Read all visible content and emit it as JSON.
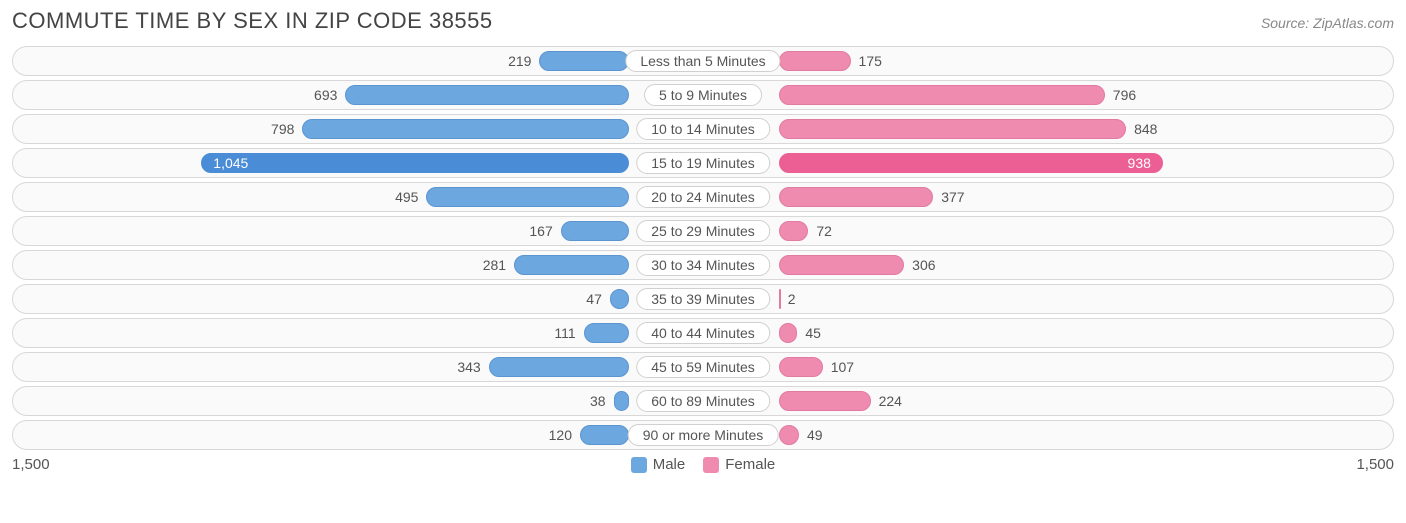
{
  "title": "COMMUTE TIME BY SEX IN ZIP CODE 38555",
  "source": "Source: ZipAtlas.com",
  "axis_max": 1500,
  "axis_label_left": "1,500",
  "axis_label_right": "1,500",
  "colors": {
    "male": "#6ca7e0",
    "male_border": "#5b95d0",
    "female": "#f08bb0",
    "female_border": "#e27aa2",
    "highlight_male": "#4a8cd6",
    "highlight_female": "#ec5f94",
    "row_bg": "#fafafa",
    "row_border": "#d8d8d8",
    "text": "#555555",
    "text_inside": "#ffffff"
  },
  "legend": [
    {
      "label": "Male",
      "color": "#6ca7e0"
    },
    {
      "label": "Female",
      "color": "#f08bb0"
    }
  ],
  "highlight_index": 3,
  "rows": [
    {
      "category": "Less than 5 Minutes",
      "male": 219,
      "male_label": "219",
      "female": 175,
      "female_label": "175"
    },
    {
      "category": "5 to 9 Minutes",
      "male": 693,
      "male_label": "693",
      "female": 796,
      "female_label": "796"
    },
    {
      "category": "10 to 14 Minutes",
      "male": 798,
      "male_label": "798",
      "female": 848,
      "female_label": "848"
    },
    {
      "category": "15 to 19 Minutes",
      "male": 1045,
      "male_label": "1,045",
      "female": 938,
      "female_label": "938"
    },
    {
      "category": "20 to 24 Minutes",
      "male": 495,
      "male_label": "495",
      "female": 377,
      "female_label": "377"
    },
    {
      "category": "25 to 29 Minutes",
      "male": 167,
      "male_label": "167",
      "female": 72,
      "female_label": "72"
    },
    {
      "category": "30 to 34 Minutes",
      "male": 281,
      "male_label": "281",
      "female": 306,
      "female_label": "306"
    },
    {
      "category": "35 to 39 Minutes",
      "male": 47,
      "male_label": "47",
      "female": 2,
      "female_label": "2"
    },
    {
      "category": "40 to 44 Minutes",
      "male": 111,
      "male_label": "111",
      "female": 45,
      "female_label": "45"
    },
    {
      "category": "45 to 59 Minutes",
      "male": 343,
      "male_label": "343",
      "female": 107,
      "female_label": "107"
    },
    {
      "category": "60 to 89 Minutes",
      "male": 38,
      "male_label": "38",
      "female": 224,
      "female_label": "224"
    },
    {
      "category": "90 or more Minutes",
      "male": 120,
      "male_label": "120",
      "female": 49,
      "female_label": "49"
    }
  ]
}
